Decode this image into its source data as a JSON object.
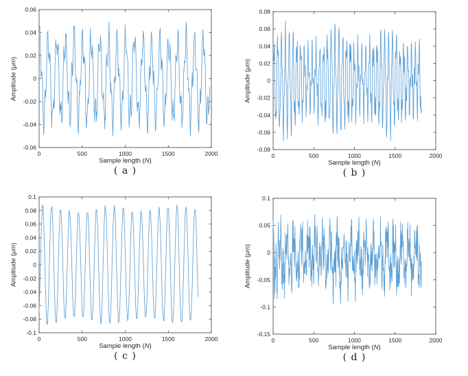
{
  "figure": {
    "background": "#ffffff",
    "line_color": "#5B9FD6",
    "axis_color": "#404040",
    "text_color": "#262626"
  },
  "chart_data": {
    "type": "line",
    "shared": {
      "xlabel_pre": "Sample length (",
      "xlabel_var": "N",
      "xlabel_post": ")",
      "ylabel_pre": "Amplitude (",
      "ylabel_unit": "μm",
      "ylabel_post": ")",
      "xlim": [
        0,
        2000
      ],
      "x_ticks": [
        "0",
        "500",
        "1000",
        "1500",
        "2000"
      ],
      "grid": false,
      "legend": "none"
    },
    "plots": [
      {
        "caption": "( a )",
        "ylim": [
          -0.06,
          0.06
        ],
        "y_ticks": [
          "0.06",
          "0.04",
          "0.02",
          "0",
          "-0.02",
          "-0.04",
          "-0.06"
        ],
        "description": "noisy periodic waveform, ~20 cycles over 0-2000 samples, peaks about +0.05/-0.05",
        "generator": {
          "seed": 11,
          "n": 560,
          "x_start": 0,
          "x_end": 1980,
          "offset": 0,
          "noise": 0.007,
          "components": [
            {
              "amp": 0.033,
              "period": 100,
              "phase": 1.2
            },
            {
              "amp": 0.012,
              "period": 31,
              "phase": 0.5
            }
          ],
          "clip": [
            -0.056,
            0.057
          ]
        }
      },
      {
        "caption": "( b )",
        "ylim": [
          -0.08,
          0.08
        ],
        "y_ticks": [
          "0.08",
          "0.06",
          "0.04",
          "0.02",
          "0",
          "-0.02",
          "-0.04",
          "-0.06",
          "-0.08"
        ],
        "description": "irregular noisy oscillation, ~38 cycles over 0-1830 samples, peaks up to +0.075/-0.07",
        "generator": {
          "seed": 22,
          "n": 520,
          "x_start": 0,
          "x_end": 1825,
          "offset": 0,
          "noise": 0.009,
          "components": [
            {
              "amp": 0.041,
              "period": 47,
              "phase": 0.3,
              "amp_mod": {
                "depth": 0.25,
                "period": 620,
                "phase": 0
              }
            },
            {
              "amp": 0.015,
              "period": 16.5,
              "phase": 1.1
            }
          ],
          "clip": [
            -0.073,
            0.077
          ]
        }
      },
      {
        "caption": "( c )",
        "ylim": [
          -0.1,
          0.1
        ],
        "y_ticks": [
          "0.1",
          "0.08",
          "0.06",
          "0.04",
          "0.02",
          "0",
          "-0.02",
          "-0.04",
          "-0.06",
          "-0.08",
          "-0.1"
        ],
        "description": "smooth sinusoid, ~17.5 cycles over 0-1840 samples, amplitude about 0.08-0.09",
        "generator": {
          "seed": 33,
          "n": 360,
          "x_start": 0,
          "x_end": 1845,
          "offset": 0,
          "noise": 0.0032,
          "components": [
            {
              "amp": 0.0825,
              "period": 104,
              "phase": -0.93,
              "amp_mod": {
                "depth": 0.05,
                "period": 760,
                "phase": 1
              }
            }
          ],
          "clip": [
            -0.088,
            0.092
          ]
        }
      },
      {
        "caption": "( d )",
        "ylim": [
          -0.15,
          0.1
        ],
        "y_ticks": [
          "0.1",
          "0.05",
          "0",
          "-0.05",
          "-0.1",
          "-0.15"
        ],
        "description": "strongly noisy waveform over 0-1830 samples, excursions +0.098 to -0.13, slight negative bias",
        "generator": {
          "seed": 44,
          "n": 620,
          "x_start": 0,
          "x_end": 1825,
          "offset": -0.008,
          "noise": 0.036,
          "components": [
            {
              "amp": 0.032,
              "period": 88,
              "phase": 2.0
            },
            {
              "amp": 0.022,
              "period": 30,
              "phase": 0.8
            }
          ],
          "spike": {
            "prob": 0.02,
            "mag": 0.05
          },
          "clip": [
            -0.133,
            0.097
          ]
        }
      }
    ]
  }
}
